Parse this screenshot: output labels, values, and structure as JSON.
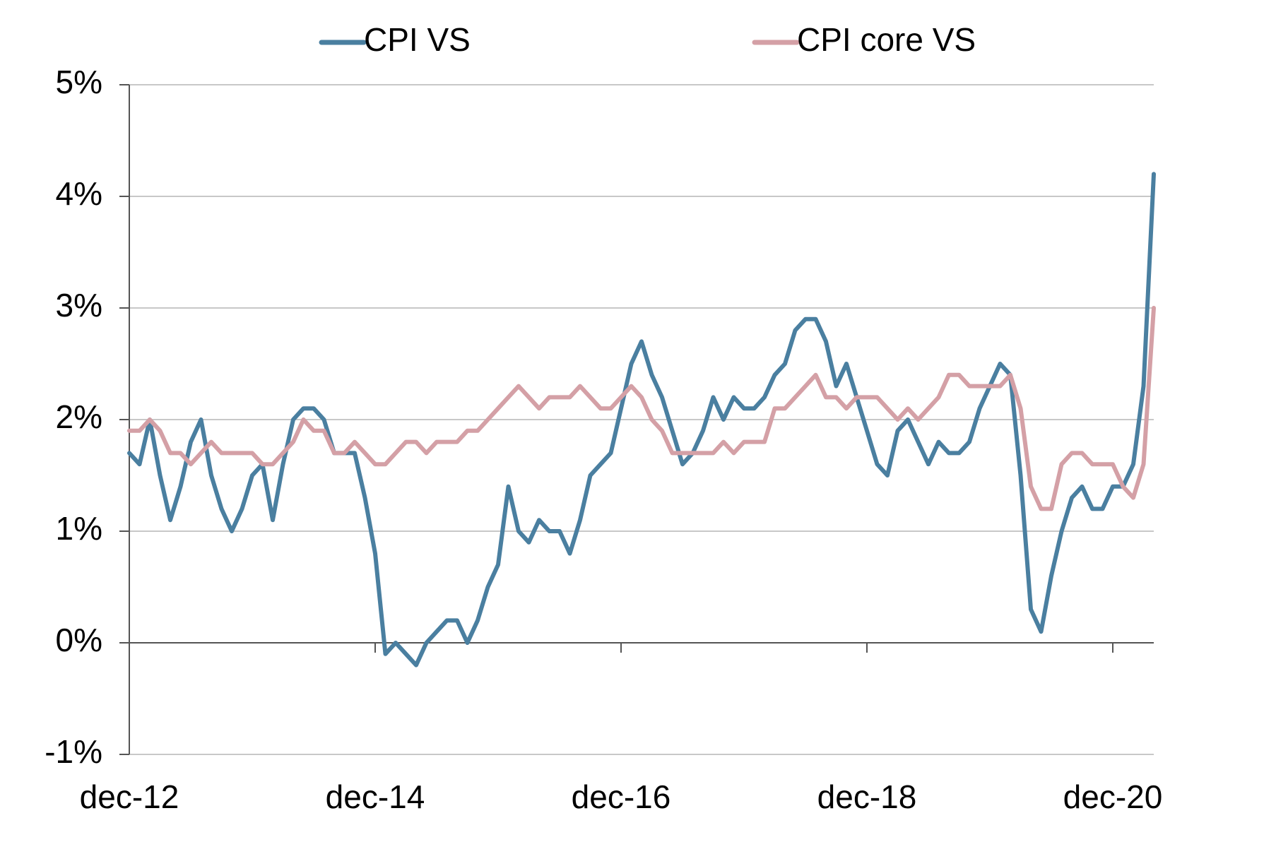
{
  "chart_data": {
    "type": "line",
    "categories": [
      "dec-12",
      null,
      null,
      null,
      null,
      null,
      null,
      null,
      null,
      null,
      null,
      null,
      null,
      null,
      null,
      null,
      null,
      null,
      null,
      null,
      null,
      null,
      null,
      null,
      "dec-14",
      null,
      null,
      null,
      null,
      null,
      null,
      null,
      null,
      null,
      null,
      null,
      null,
      null,
      null,
      null,
      null,
      null,
      null,
      null,
      null,
      null,
      null,
      null,
      "dec-16",
      null,
      null,
      null,
      null,
      null,
      null,
      null,
      null,
      null,
      null,
      null,
      null,
      null,
      null,
      null,
      null,
      null,
      null,
      null,
      null,
      null,
      null,
      null,
      "dec-18",
      null,
      null,
      null,
      null,
      null,
      null,
      null,
      null,
      null,
      null,
      null,
      null,
      null,
      null,
      null,
      null,
      null,
      null,
      null,
      null,
      null,
      null,
      null,
      "dec-20",
      null,
      null,
      null,
      null
    ],
    "series": [
      {
        "name": "CPI VS",
        "color": "#4a7fa0",
        "values": [
          1.7,
          1.6,
          2.0,
          1.5,
          1.1,
          1.4,
          1.8,
          2.0,
          1.5,
          1.2,
          1.0,
          1.2,
          1.5,
          1.6,
          1.1,
          1.6,
          2.0,
          2.1,
          2.1,
          2.0,
          1.7,
          1.7,
          1.7,
          1.3,
          0.8,
          -0.1,
          0.0,
          -0.1,
          -0.2,
          0.0,
          0.1,
          0.2,
          0.2,
          0.0,
          0.2,
          0.5,
          0.7,
          1.4,
          1.0,
          0.9,
          1.1,
          1.0,
          1.0,
          0.8,
          1.1,
          1.5,
          1.6,
          1.7,
          2.1,
          2.5,
          2.7,
          2.4,
          2.2,
          1.9,
          1.6,
          1.7,
          1.9,
          2.2,
          2.0,
          2.2,
          2.1,
          2.1,
          2.2,
          2.4,
          2.5,
          2.8,
          2.9,
          2.9,
          2.7,
          2.3,
          2.5,
          2.2,
          1.9,
          1.6,
          1.5,
          1.9,
          2.0,
          1.8,
          1.6,
          1.8,
          1.7,
          1.7,
          1.8,
          2.1,
          2.3,
          2.5,
          2.4,
          1.5,
          0.3,
          0.1,
          0.6,
          1.0,
          1.3,
          1.4,
          1.2,
          1.2,
          1.4,
          1.4,
          1.6,
          2.3,
          4.2
        ]
      },
      {
        "name": "CPI core VS",
        "color": "#d4a0a6",
        "values": [
          1.9,
          1.9,
          2.0,
          1.9,
          1.7,
          1.7,
          1.6,
          1.7,
          1.8,
          1.7,
          1.7,
          1.7,
          1.7,
          1.6,
          1.6,
          1.7,
          1.8,
          2.0,
          1.9,
          1.9,
          1.7,
          1.7,
          1.8,
          1.7,
          1.6,
          1.6,
          1.7,
          1.8,
          1.8,
          1.7,
          1.8,
          1.8,
          1.8,
          1.9,
          1.9,
          2.0,
          2.1,
          2.2,
          2.3,
          2.2,
          2.1,
          2.2,
          2.2,
          2.2,
          2.3,
          2.2,
          2.1,
          2.1,
          2.2,
          2.3,
          2.2,
          2.0,
          1.9,
          1.7,
          1.7,
          1.7,
          1.7,
          1.7,
          1.8,
          1.7,
          1.8,
          1.8,
          1.8,
          2.1,
          2.1,
          2.2,
          2.3,
          2.4,
          2.2,
          2.2,
          2.1,
          2.2,
          2.2,
          2.2,
          2.1,
          2.0,
          2.1,
          2.0,
          2.1,
          2.2,
          2.4,
          2.4,
          2.3,
          2.3,
          2.3,
          2.3,
          2.4,
          2.1,
          1.4,
          1.2,
          1.2,
          1.6,
          1.7,
          1.7,
          1.6,
          1.6,
          1.6,
          1.4,
          1.3,
          1.6,
          3.0
        ]
      }
    ],
    "ylim": [
      -1,
      5
    ],
    "yticks": [
      {
        "value": -1,
        "label": "-1%"
      },
      {
        "value": 0,
        "label": "0%"
      },
      {
        "value": 1,
        "label": "1%"
      },
      {
        "value": 2,
        "label": "2%"
      },
      {
        "value": 3,
        "label": "3%"
      },
      {
        "value": 4,
        "label": "4%"
      },
      {
        "value": 5,
        "label": "5%"
      }
    ],
    "grid": true,
    "legend": "top"
  }
}
